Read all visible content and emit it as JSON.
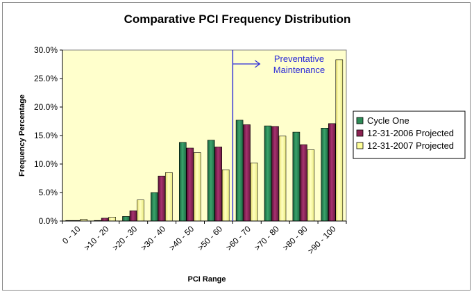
{
  "chart_data": {
    "type": "bar",
    "title": "Comparative PCI Frequency Distribution",
    "xlabel": "PCI Range",
    "ylabel": "Frequency Percentage",
    "categories": [
      "0 - 10",
      ">10 - 20",
      ">20 - 30",
      ">30 - 40",
      ">40 - 50",
      ">50 - 60",
      ">60 - 70",
      ">70 - 80",
      ">80 - 90",
      ">90 - 100"
    ],
    "series": [
      {
        "name": "Cycle One",
        "color": "#2e8b57",
        "values": [
          0.1,
          0.1,
          0.8,
          5.0,
          13.8,
          14.2,
          17.7,
          16.7,
          15.6,
          16.3
        ]
      },
      {
        "name": "12-31-2006 Projected",
        "color": "#8b2252",
        "values": [
          0.1,
          0.5,
          1.8,
          7.9,
          12.8,
          13.0,
          16.9,
          16.6,
          13.4,
          17.1
        ]
      },
      {
        "name": "12-31-2007 Projected",
        "color": "#ffff99",
        "values": [
          0.3,
          0.7,
          3.7,
          8.5,
          12.0,
          9.0,
          10.2,
          14.9,
          12.5,
          28.3
        ]
      }
    ],
    "ylim": [
      0,
      30
    ],
    "yticks": [
      "0.0%",
      "5.0%",
      "10.0%",
      "15.0%",
      "20.0%",
      "25.0%",
      "30.0%"
    ],
    "ytick_values": [
      0,
      5,
      10,
      15,
      20,
      25,
      30
    ],
    "grid": false,
    "legend_position": "right",
    "annotation": {
      "lines": [
        "Preventative",
        "Maintenance"
      ],
      "color": "#2a2ad8",
      "at_category_boundary": ">60 - 70"
    },
    "plot_background": "#ffffcc"
  }
}
